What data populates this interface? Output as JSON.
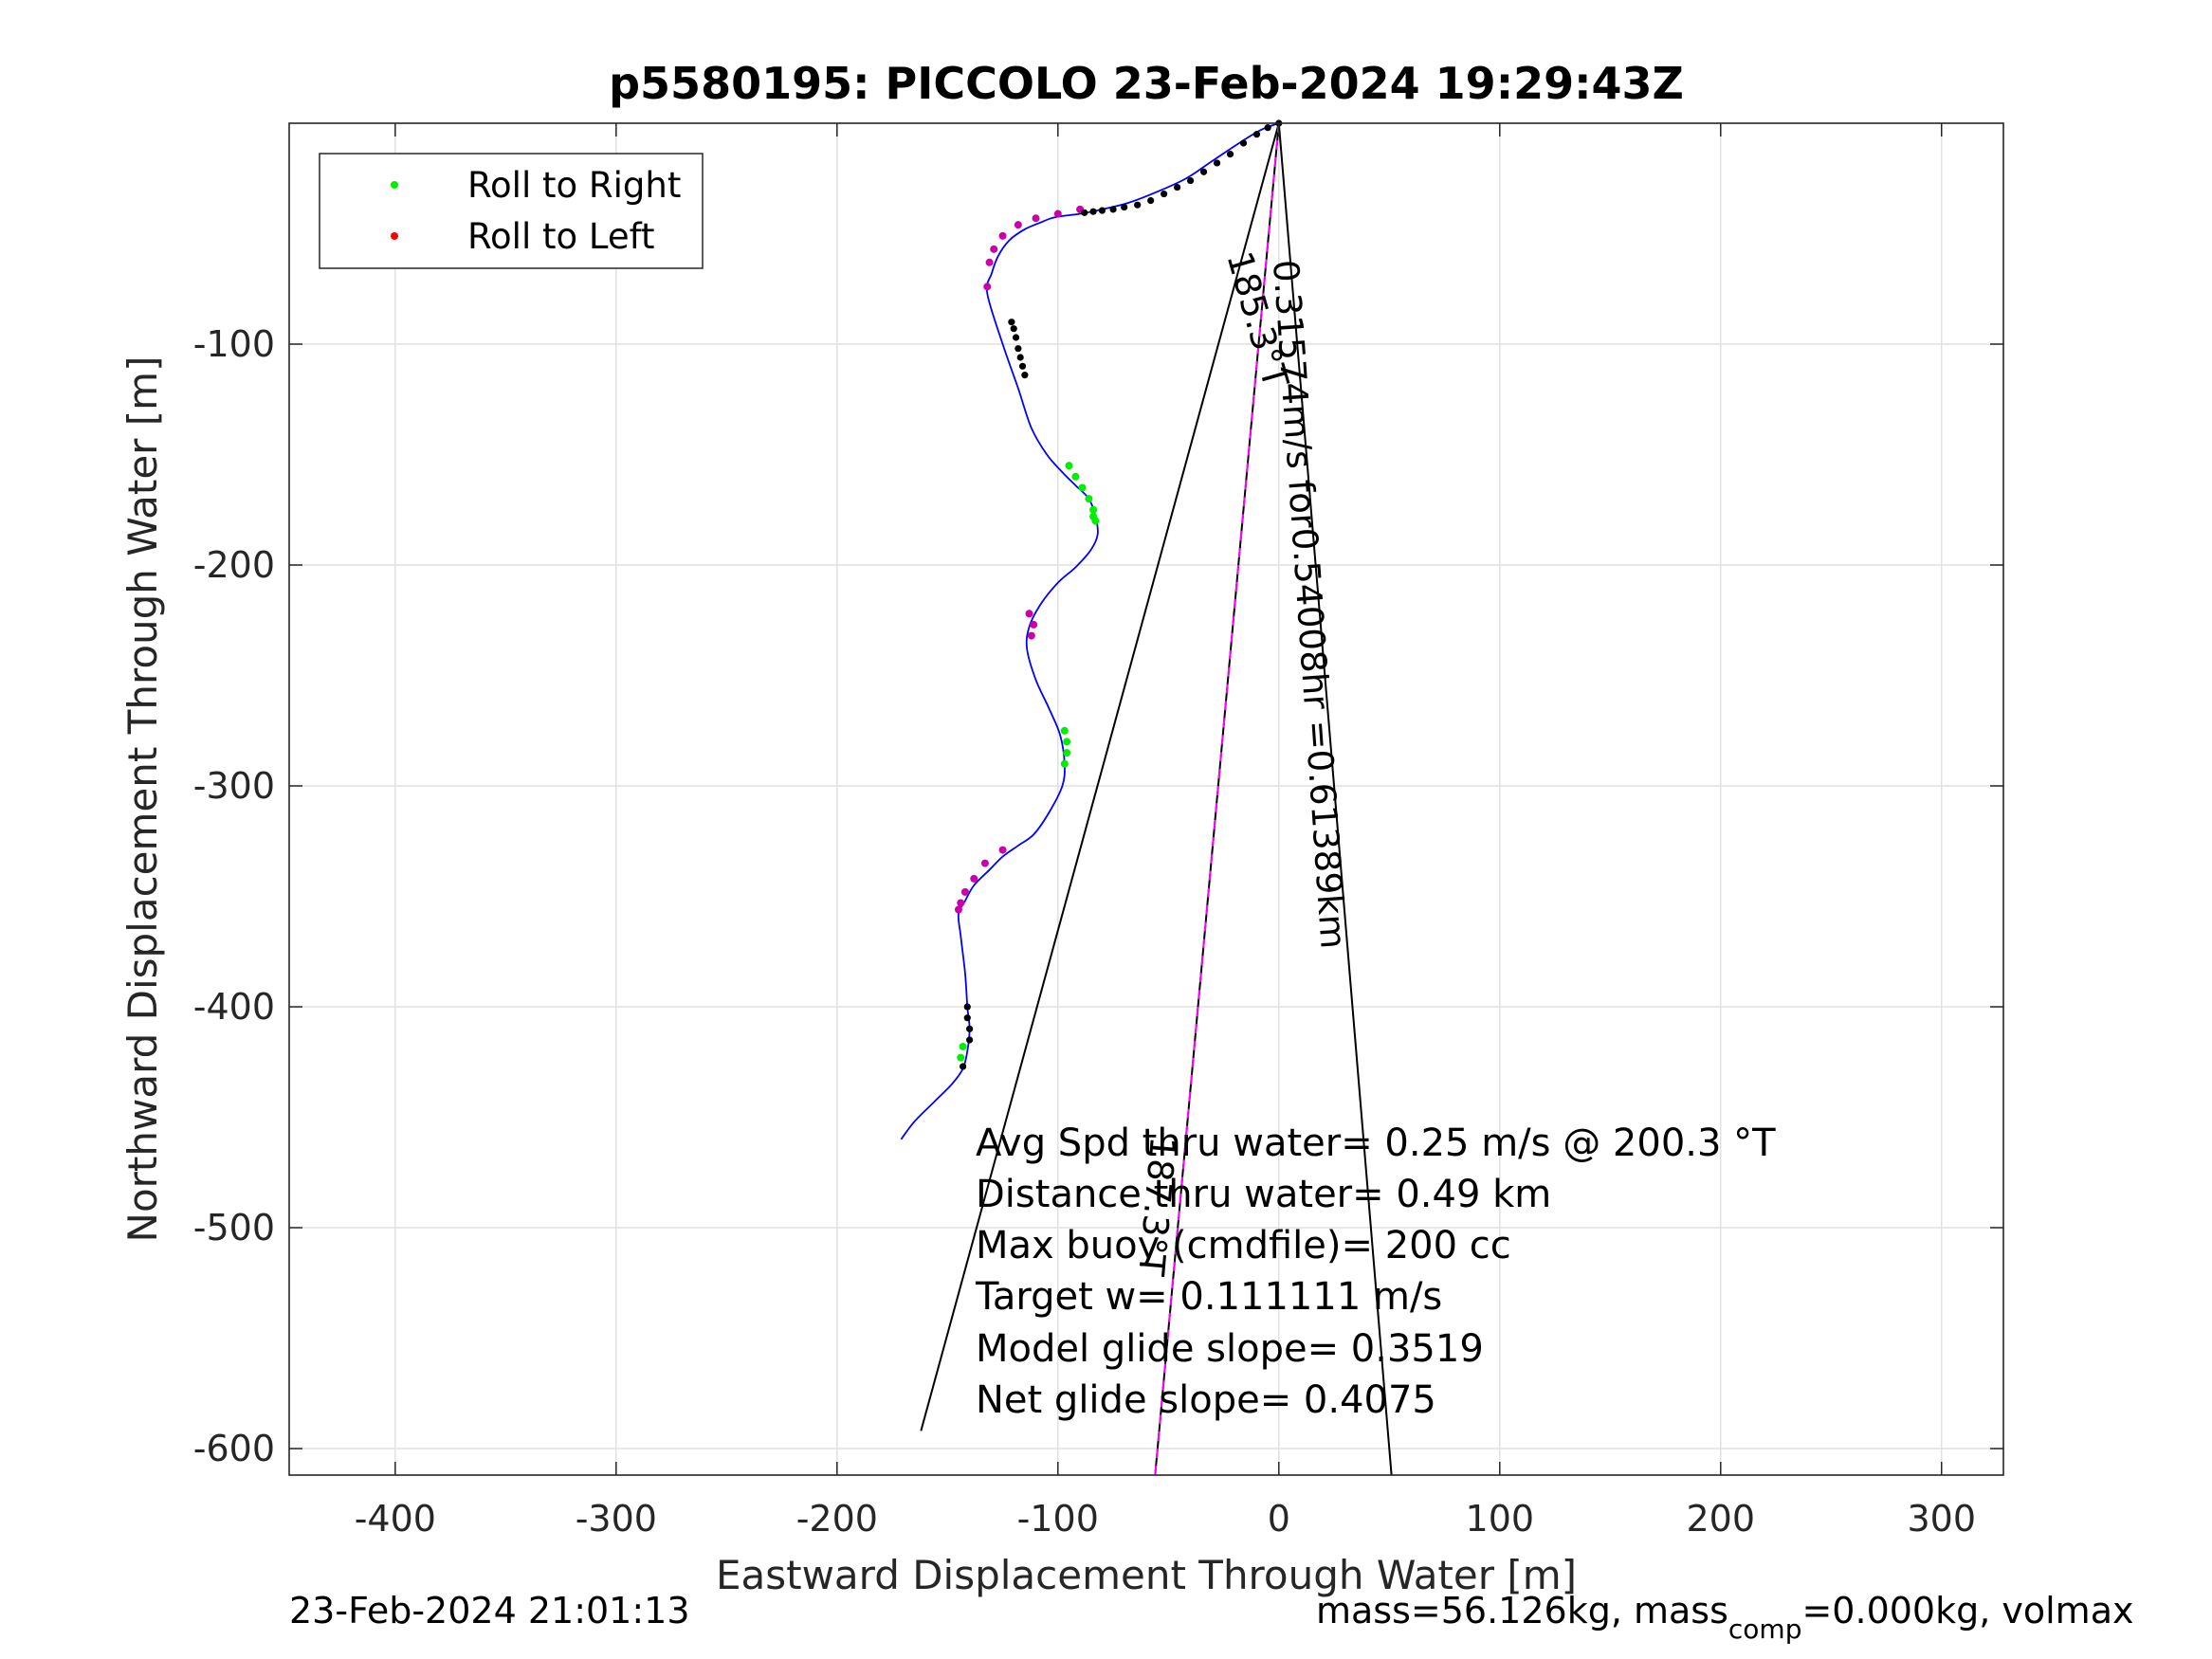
{
  "chart_data": {
    "type": "line",
    "title": "p5580195: PICCOLO 23-Feb-2024 19:29:43Z",
    "xlabel": "Eastward Displacement Through Water [m]",
    "ylabel": "Northward Displacement Through Water [m]",
    "xlim": [
      -448,
      328
    ],
    "ylim": [
      -612,
      0
    ],
    "xticks": [
      -400,
      -300,
      -200,
      -100,
      0,
      100,
      200,
      300
    ],
    "yticks": [
      -100,
      -200,
      -300,
      -400,
      -500,
      -600
    ],
    "xtick_labels": [
      "-400",
      "-300",
      "-200",
      "-100",
      "0",
      "100",
      "200",
      "300"
    ],
    "ytick_labels": [
      "-100",
      "-200",
      "-300",
      "-400",
      "-500",
      "-600"
    ],
    "grid": true,
    "legend": {
      "placement": "top-left",
      "entries": [
        {
          "label": "Roll to Right",
          "color": "#00ee00"
        },
        {
          "label": "Roll to Left",
          "color": "#ff0000"
        }
      ]
    },
    "colors": {
      "track": "#0000ff",
      "heading_line": "#ff00ff",
      "marks": "#000000"
    },
    "track": {
      "x": [
        0,
        -8,
        -18,
        -30,
        -42,
        -55,
        -68,
        -80,
        -90,
        -98,
        -103,
        -108,
        -115,
        -122,
        -127,
        -130,
        -132,
        -125,
        -118,
        -112,
        -105,
        -98,
        -92,
        -86,
        -83,
        -82,
        -85,
        -92,
        -100,
        -108,
        -113,
        -114,
        -110,
        -104,
        -99,
        -97,
        -98,
        -104,
        -111,
        -118,
        -125,
        -131,
        -138,
        -142,
        -145,
        -144,
        -142,
        -141,
        -140,
        -141,
        -143,
        -148,
        -156,
        -165,
        -171
      ],
      "y": [
        0,
        -3,
        -9,
        -17,
        -25,
        -31,
        -36,
        -39,
        -41,
        -42,
        -43,
        -45,
        -48,
        -53,
        -60,
        -68,
        -77,
        -100,
        -120,
        -138,
        -150,
        -158,
        -164,
        -170,
        -178,
        -186,
        -193,
        -201,
        -208,
        -218,
        -228,
        -238,
        -252,
        -265,
        -277,
        -290,
        -300,
        -312,
        -322,
        -327,
        -332,
        -338,
        -345,
        -352,
        -358,
        -368,
        -385,
        -400,
        -410,
        -420,
        -428,
        -435,
        -443,
        -452,
        -460
      ]
    },
    "roll_right_x": [
      -95,
      -92,
      -89,
      -86,
      -84,
      -83,
      -84,
      -97,
      -96,
      -96,
      -97,
      -144,
      -143
    ],
    "roll_right_y": [
      -155,
      -160,
      -165,
      -170,
      -175,
      -180,
      -178,
      -275,
      -280,
      -285,
      -290,
      -423,
      -418
    ],
    "roll_left_x": [
      -90,
      -100,
      -110,
      -118,
      -125,
      -129,
      -131,
      -132,
      -113,
      -111,
      -112,
      -125,
      -133,
      -138,
      -142,
      -144,
      -145
    ],
    "roll_left_y": [
      -39,
      -41,
      -43,
      -46,
      -51,
      -57,
      -63,
      -74,
      -222,
      -227,
      -232,
      -329,
      -335,
      -342,
      -348,
      -353,
      -356
    ],
    "black_marks_x": [
      0,
      -5,
      -10,
      -16,
      -22,
      -28,
      -34,
      -40,
      -46,
      -52,
      -58,
      -64,
      -70,
      -75,
      -80,
      -84,
      -88,
      -121,
      -120,
      -119,
      -118,
      -117,
      -116,
      -115,
      -141,
      -141,
      -140,
      -140,
      -143
    ],
    "black_marks_y": [
      0,
      -2,
      -5,
      -9,
      -14,
      -18,
      -22,
      -26,
      -29,
      -32,
      -35,
      -37,
      -38,
      -39,
      -39.5,
      -40,
      -40.5,
      -90,
      -93,
      -97,
      -102,
      -106,
      -110,
      -114,
      -400,
      -405,
      -410,
      -415,
      -427
    ],
    "black_lines": [
      {
        "x": [
          0,
          -162
        ],
        "y": [
          0,
          -592
        ]
      },
      {
        "x": [
          0,
          51
        ],
        "y": [
          0,
          -612
        ]
      }
    ],
    "heading_line": {
      "x": [
        0,
        -56
      ],
      "y": [
        0,
        -612
      ]
    },
    "annotations": {
      "rotated_a": "0.31574m/s for0.54008hr =0.61389km",
      "rotated_b": "185.3°T",
      "rotated_c": "187.3°T"
    },
    "stats": [
      "Avg Spd thru water=  0.25 m/s @ 200.3 °T",
      "Distance thru water=  0.49 km",
      "Max buoy (cmdfile)= 200 cc",
      "Target w= 0.111111 m/s",
      "Model glide slope= 0.3519",
      "Net glide slope= 0.4075"
    ]
  },
  "footer": {
    "timestamp": "23-Feb-2024 21:01:13",
    "mass_prefix": "mass=56.126kg, mass",
    "mass_sub": "comp",
    "mass_suffix": "=0.000kg, volmax"
  }
}
